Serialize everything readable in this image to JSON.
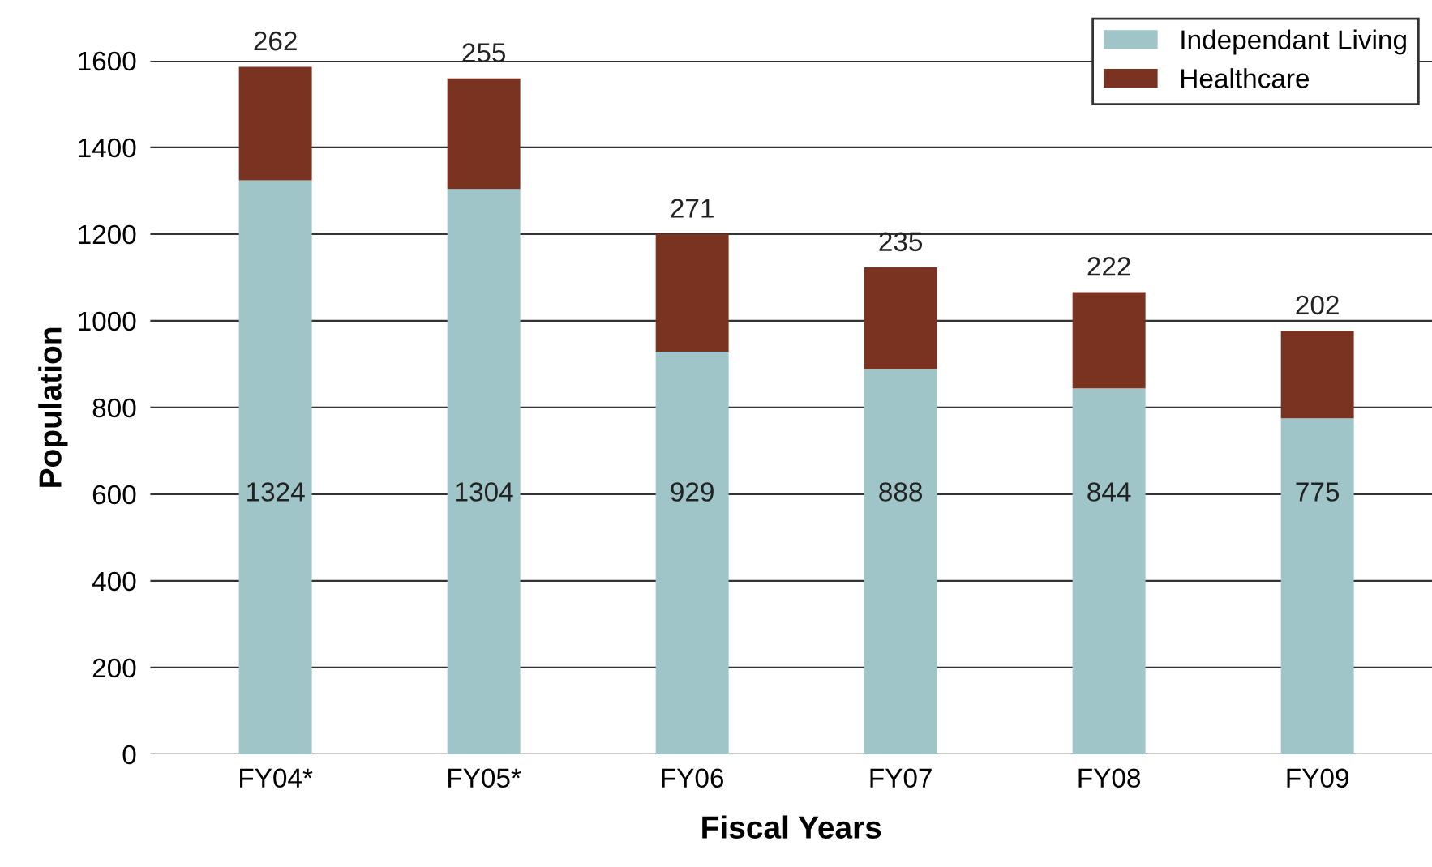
{
  "chart_data": {
    "type": "bar",
    "stacked": true,
    "xlabel": "Fiscal Years",
    "ylabel": "Population",
    "categories": [
      "FY04*",
      "FY05*",
      "FY06",
      "FY07",
      "FY08",
      "FY09"
    ],
    "series": [
      {
        "name": "Independant Living",
        "color": "#9fc5c8",
        "values": [
          1324,
          1304,
          929,
          888,
          844,
          775
        ]
      },
      {
        "name": "Healthcare",
        "color": "#7a3320",
        "values": [
          262,
          255,
          271,
          235,
          222,
          202
        ]
      }
    ],
    "ylim": [
      0,
      1600
    ],
    "yticks": [
      0,
      200,
      400,
      600,
      800,
      1000,
      1200,
      1400,
      1600
    ],
    "grid": "y",
    "legend": "top right",
    "data_labels": true
  }
}
